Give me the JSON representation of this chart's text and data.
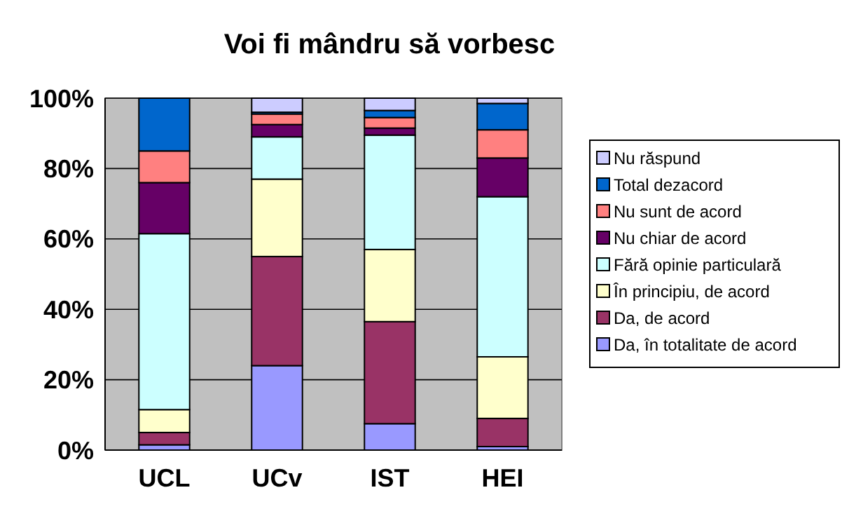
{
  "chart_data": {
    "type": "bar",
    "title": "Voi fi mândru să vorbesc",
    "categories": [
      "UCL",
      "UCv",
      "IST",
      "HEI"
    ],
    "stacked": true,
    "ylim": [
      0,
      100
    ],
    "yticks": [
      {
        "value": 0,
        "label": "0%"
      },
      {
        "value": 20,
        "label": "20%"
      },
      {
        "value": 40,
        "label": "40%"
      },
      {
        "value": 60,
        "label": "60%"
      },
      {
        "value": 80,
        "label": "80%"
      },
      {
        "value": 100,
        "label": "100%"
      }
    ],
    "grid": "y",
    "legend": "right",
    "series": [
      {
        "name": "Da, în totalitate de acord",
        "color": "#9999ff",
        "values": [
          1.5,
          24,
          7.5,
          1
        ]
      },
      {
        "name": "Da, de acord",
        "color": "#993366",
        "values": [
          3.5,
          31,
          29,
          8
        ]
      },
      {
        "name": "În principiu, de acord",
        "color": "#ffffcc",
        "values": [
          6.5,
          22,
          20.5,
          17.5
        ]
      },
      {
        "name": "Fără opinie particulară",
        "color": "#ccffff",
        "values": [
          50,
          12,
          32.5,
          45.5
        ]
      },
      {
        "name": "Nu chiar de acord",
        "color": "#660066",
        "values": [
          14.5,
          3.5,
          2,
          11
        ]
      },
      {
        "name": "Nu sunt de acord",
        "color": "#ff8080",
        "values": [
          9,
          3,
          3,
          8
        ]
      },
      {
        "name": "Total dezacord",
        "color": "#0066cc",
        "values": [
          15,
          0.5,
          2,
          7.5
        ]
      },
      {
        "name": "Nu răspund",
        "color": "#ccccff",
        "values": [
          0,
          4,
          3.5,
          1.5
        ]
      }
    ]
  }
}
